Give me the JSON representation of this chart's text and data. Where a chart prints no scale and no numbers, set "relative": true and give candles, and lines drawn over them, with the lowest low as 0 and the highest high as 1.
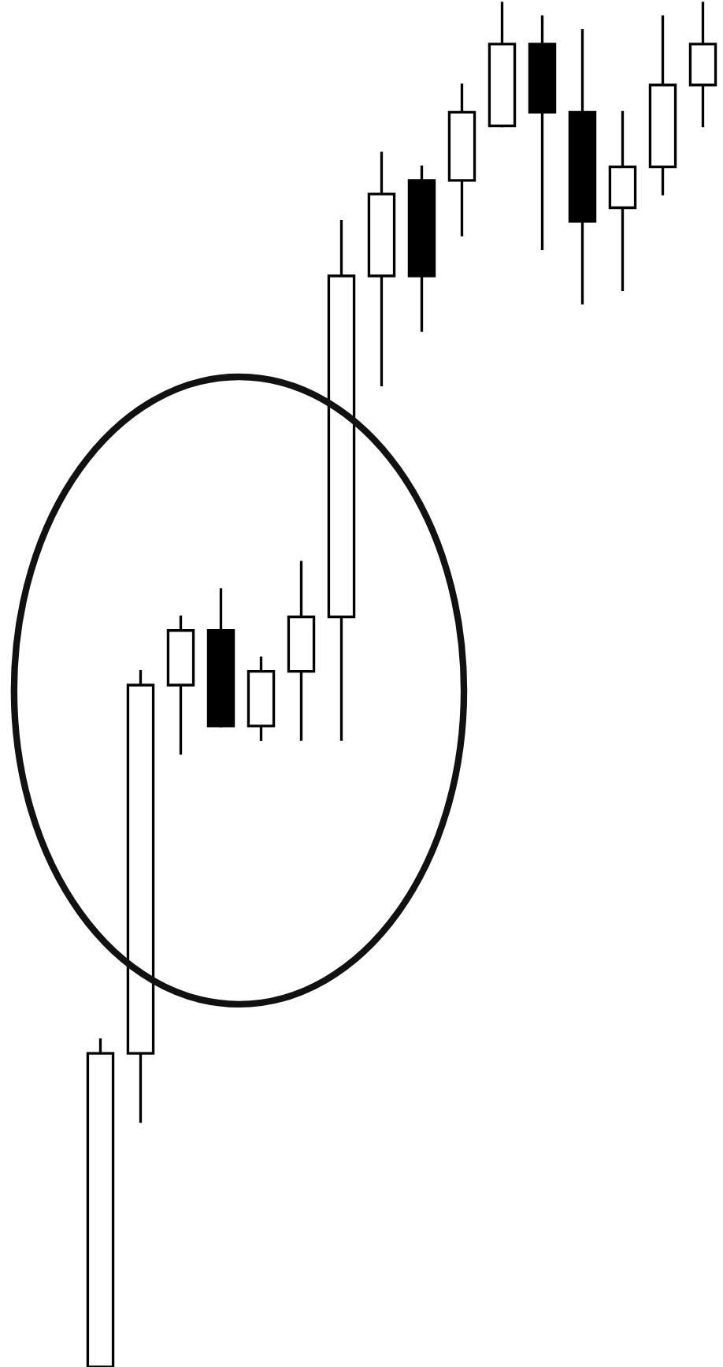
{
  "chart_data": {
    "type": "candlestick",
    "relative": true,
    "categories": [
      null,
      null,
      null,
      null,
      null,
      null,
      null,
      null,
      null,
      null,
      null,
      null,
      null,
      null,
      null,
      null
    ],
    "ohlc": [
      [
        0,
        0.24,
        0,
        0.23
      ],
      [
        0.23,
        0.51,
        0.18,
        0.5
      ],
      [
        0.5,
        0.55,
        0.45,
        0.54
      ],
      [
        0.54,
        0.57,
        0.47,
        0.47
      ],
      [
        0.47,
        0.52,
        0.46,
        0.51
      ],
      [
        0.51,
        0.59,
        0.46,
        0.55
      ],
      [
        0.55,
        0.84,
        0.46,
        0.8
      ],
      [
        0.8,
        0.89,
        0.72,
        0.86
      ],
      [
        0.87,
        0.88,
        0.76,
        0.8
      ],
      [
        0.87,
        0.94,
        0.83,
        0.92
      ],
      [
        0.91,
        1,
        0.91,
        0.97
      ],
      [
        0.97,
        0.99,
        0.82,
        0.92
      ],
      [
        0.92,
        0.98,
        0.78,
        0.84
      ],
      [
        0.85,
        0.92,
        0.79,
        0.88
      ],
      [
        0.88,
        0.99,
        0.86,
        0.94
      ],
      [
        0.94,
        1,
        0.91,
        0.97
      ]
    ],
    "grid": false
  }
}
